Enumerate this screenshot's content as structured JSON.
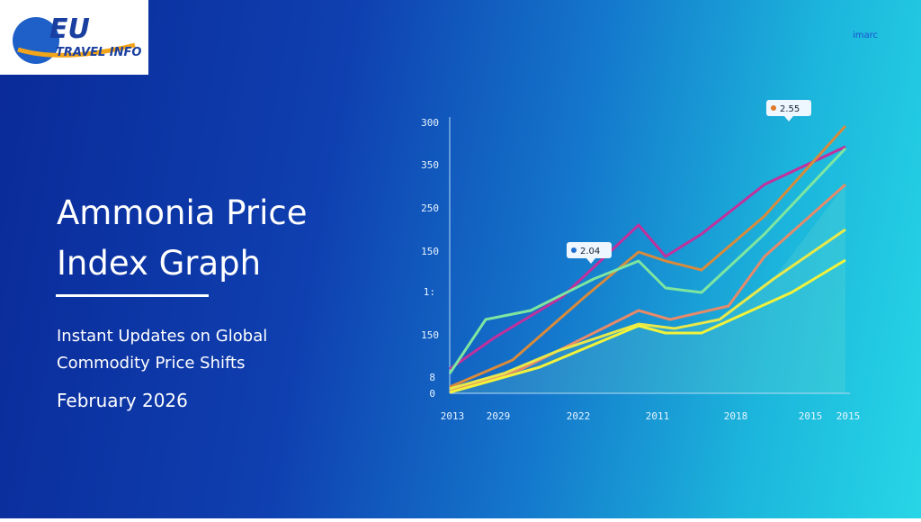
{
  "logo": {
    "brand": "EU",
    "tagline": "TRAVEL INFO"
  },
  "header": {
    "title_lines": [
      "Ammonia Price",
      "Index Graph"
    ],
    "subtitle_lines": [
      "Instant Updates on Global",
      "Commodity Price Shifts"
    ],
    "date": "February 2026"
  },
  "watermark": "imarc",
  "graphic": {
    "y_labels": [
      "300",
      "350",
      "250",
      "150",
      "1:",
      "150",
      "8",
      "0"
    ],
    "x_labels": [
      "2013",
      "2029",
      "2022",
      "2011",
      "2018",
      "2015",
      "2015"
    ],
    "callouts": [
      "2.04",
      "2.55"
    ]
  }
}
